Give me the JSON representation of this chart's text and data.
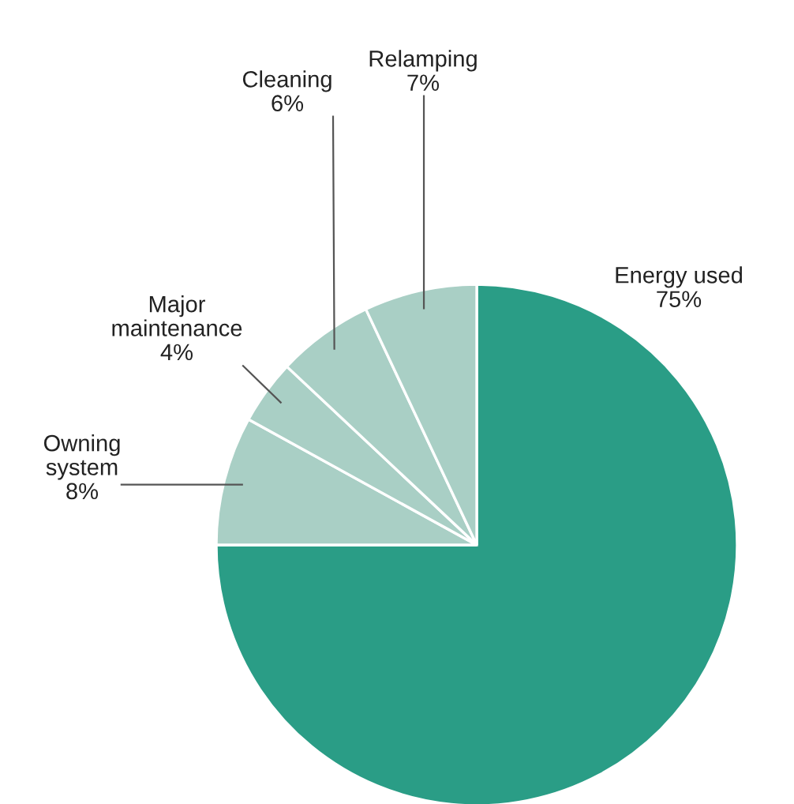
{
  "chart_data": {
    "type": "pie",
    "categories": [
      "Energy used",
      "Owning system",
      "Major maintenance",
      "Cleaning",
      "Relamping"
    ],
    "values": [
      75,
      8,
      4,
      6,
      7
    ],
    "value_labels": [
      "75%",
      "8%",
      "4%",
      "6%",
      "7%"
    ],
    "colors": [
      "#2a9d86",
      "#a9cfc5",
      "#a9cfc5",
      "#a9cfc5",
      "#a9cfc5"
    ]
  }
}
